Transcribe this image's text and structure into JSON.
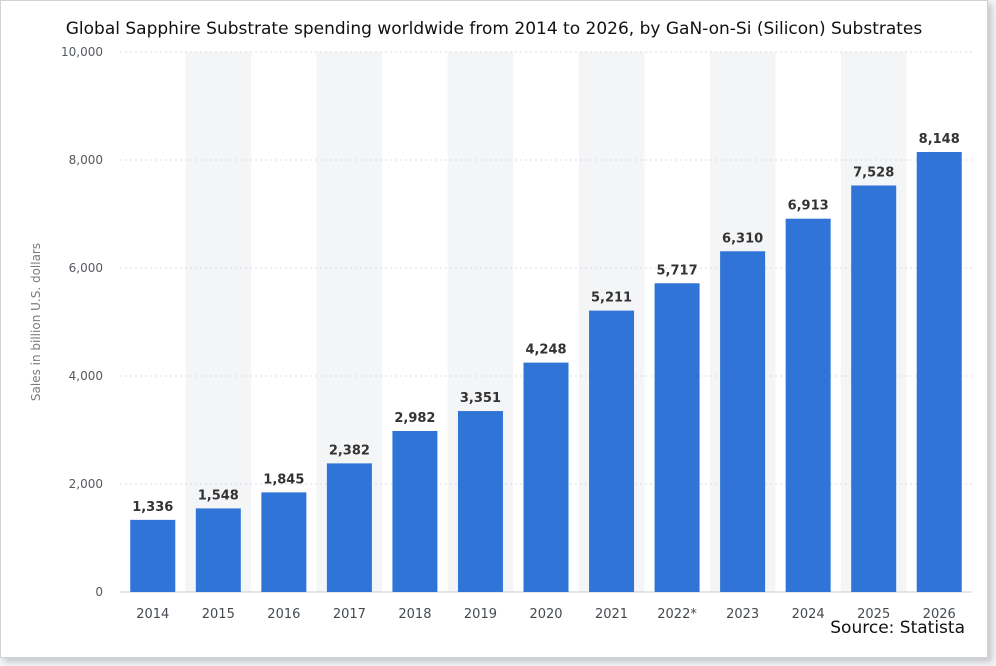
{
  "chart_data": {
    "type": "bar",
    "title": "Global Sapphire Substrate spending worldwide from 2014 to 2026, by GaN-on-Si (Silicon) Substrates",
    "ylabel": "Sales in billion U.S. dollars",
    "xlabel": "",
    "source": "Source: Statista",
    "categories": [
      "2014",
      "2015",
      "2016",
      "2017",
      "2018",
      "2019",
      "2020",
      "2021",
      "2022*",
      "2023",
      "2024",
      "2025",
      "2026"
    ],
    "values": [
      1336,
      1548,
      1845,
      2382,
      2982,
      3351,
      4248,
      5211,
      5717,
      6310,
      6913,
      7528,
      8148
    ],
    "value_labels": [
      "1,336",
      "1,548",
      "1,845",
      "2,382",
      "2,982",
      "3,351",
      "4,248",
      "5,211",
      "5,717",
      "6,310",
      "6,913",
      "7,528",
      "8,148"
    ],
    "ylim": [
      0,
      10000
    ],
    "yticks": [
      0,
      2000,
      4000,
      6000,
      8000,
      10000
    ],
    "ytick_labels": [
      "0",
      "2,000",
      "4,000",
      "6,000",
      "8,000",
      "10,000"
    ],
    "grid": true,
    "bar_color": "#2f74d6",
    "band_color": "#f4f5f7"
  }
}
